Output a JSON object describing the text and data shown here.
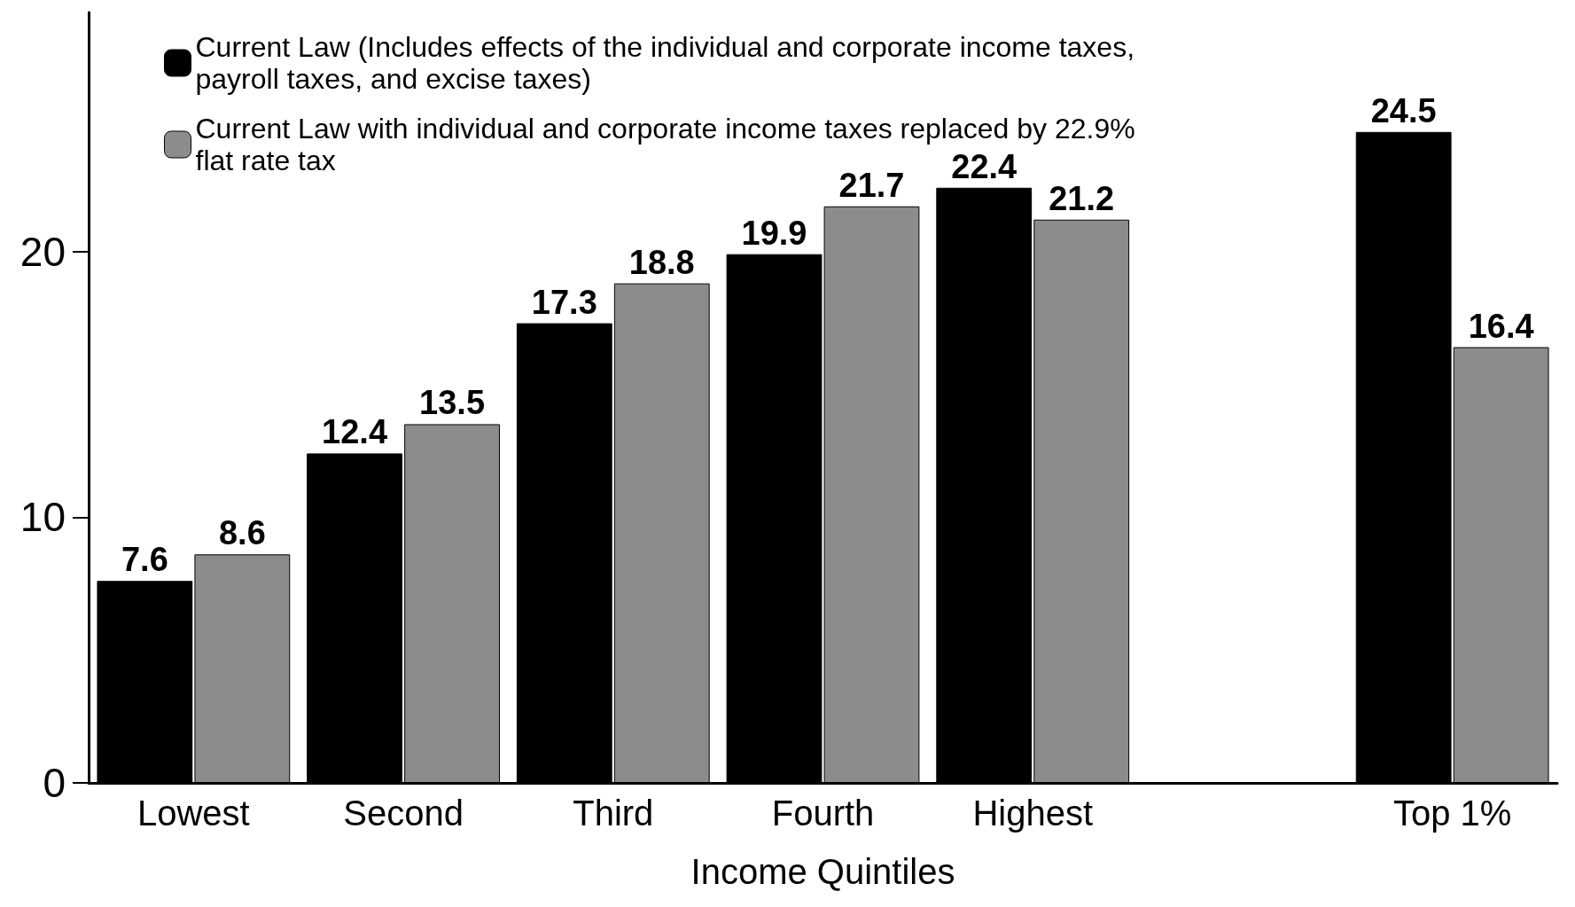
{
  "chart_data": {
    "type": "bar",
    "xlabel": "Income Quintiles",
    "categories": [
      "Lowest",
      "Second",
      "Third",
      "Fourth",
      "Highest",
      null,
      "Top 1%"
    ],
    "series": [
      {
        "name": "Current Law (Includes effects of the individual and corporate income taxes, payroll taxes, and excise taxes)",
        "color": "#000000",
        "values": [
          7.6,
          12.4,
          17.3,
          19.9,
          22.4,
          null,
          24.5
        ]
      },
      {
        "name": "Current Law with individual and corporate income taxes replaced by 22.9% flat rate tax",
        "color": "#8c8c8c",
        "values": [
          8.6,
          13.5,
          18.8,
          21.7,
          21.2,
          null,
          16.4
        ]
      }
    ],
    "ylim": [
      0,
      29
    ],
    "yticks": [
      0,
      10,
      20
    ],
    "grid": false,
    "legend": "top left",
    "data_labels": true
  }
}
